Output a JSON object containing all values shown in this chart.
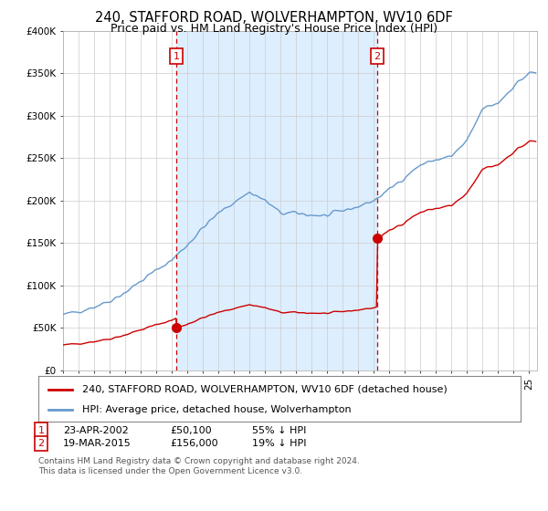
{
  "title": "240, STAFFORD ROAD, WOLVERHAMPTON, WV10 6DF",
  "subtitle": "Price paid vs. HM Land Registry's House Price Index (HPI)",
  "ylim": [
    0,
    400000
  ],
  "yticks": [
    0,
    50000,
    100000,
    150000,
    200000,
    250000,
    300000,
    350000,
    400000
  ],
  "ytick_labels": [
    "£0",
    "£50K",
    "£100K",
    "£150K",
    "£200K",
    "£250K",
    "£300K",
    "£350K",
    "£400K"
  ],
  "xlim_start": 1995.0,
  "xlim_end": 2025.5,
  "sale1_year": 2002.3,
  "sale1_price": 50100,
  "sale1_label": "1",
  "sale2_year": 2015.2,
  "sale2_price": 156000,
  "sale2_label": "2",
  "line_color_price": "#cc0000",
  "line_color_hpi": "#6699cc",
  "vline_color": "#cc0000",
  "shade_color": "#ddeeff",
  "legend_price_label": "240, STAFFORD ROAD, WOLVERHAMPTON, WV10 6DF (detached house)",
  "legend_hpi_label": "HPI: Average price, detached house, Wolverhampton",
  "footnote": "Contains HM Land Registry data © Crown copyright and database right 2024.\nThis data is licensed under the Open Government Licence v3.0.",
  "background_color": "#ffffff",
  "grid_color": "#cccccc",
  "title_fontsize": 10.5,
  "subtitle_fontsize": 9,
  "tick_fontsize": 7.5,
  "legend_fontsize": 8,
  "footnote_fontsize": 6.5,
  "hpi_key_years": [
    1995,
    1996,
    1997,
    1998,
    1999,
    2000,
    2001,
    2002,
    2003,
    2004,
    2005,
    2006,
    2007,
    2008,
    2009,
    2010,
    2011,
    2012,
    2013,
    2014,
    2015,
    2016,
    2017,
    2018,
    2019,
    2020,
    2021,
    2022,
    2023,
    2024,
    2025
  ],
  "hpi_key_vals": [
    65000,
    70000,
    75000,
    82000,
    92000,
    105000,
    118000,
    130000,
    148000,
    168000,
    185000,
    198000,
    210000,
    200000,
    185000,
    185000,
    183000,
    182000,
    188000,
    193000,
    200000,
    213000,
    228000,
    242000,
    248000,
    252000,
    270000,
    308000,
    315000,
    335000,
    350000
  ],
  "price_initial": 30000,
  "price_initial_year": 1995
}
